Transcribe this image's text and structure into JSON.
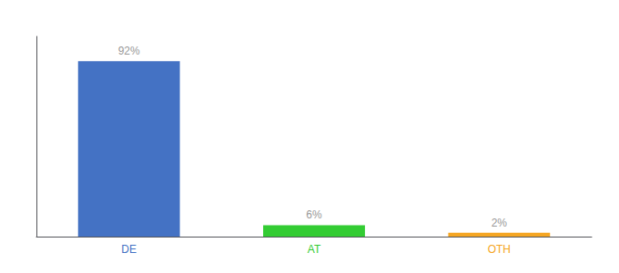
{
  "chart_data": {
    "type": "bar",
    "categories": [
      "DE",
      "AT",
      "OTH"
    ],
    "values": [
      92,
      6,
      2
    ],
    "value_labels": [
      "92%",
      "6%",
      "2%"
    ],
    "colors": [
      "#4472c4",
      "#33cc33",
      "#f5a623"
    ],
    "ylim": [
      0,
      105
    ],
    "grid": false,
    "data_labels": true,
    "tick_labels": "x"
  }
}
